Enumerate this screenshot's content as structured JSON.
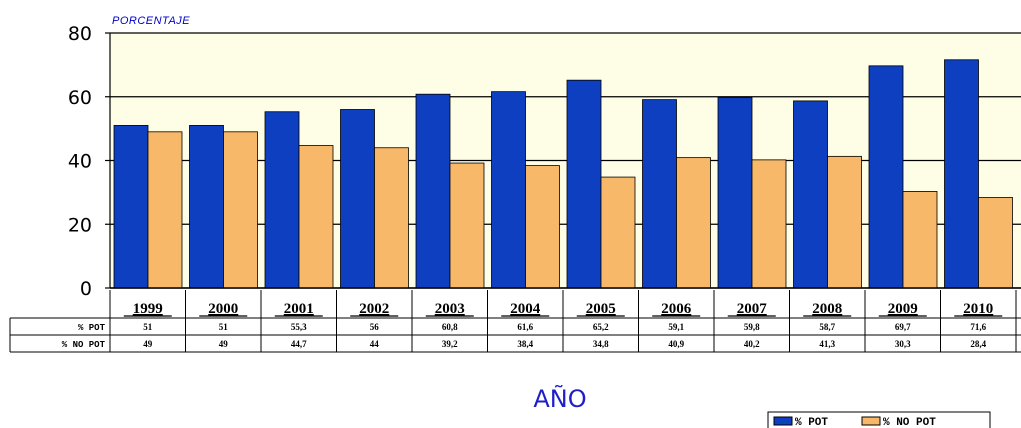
{
  "chart_data": {
    "type": "bar",
    "ylabel": "PORCENTAJE",
    "xlabel": "AÑO",
    "ylim": [
      0,
      80
    ],
    "yticks": [
      "0",
      "20",
      "40",
      "60",
      "80"
    ],
    "grid": true,
    "legend_position": "bottom-right",
    "categories": [
      "1999",
      "2000",
      "2001",
      "2002",
      "2003",
      "2004",
      "2005",
      "2006",
      "2007",
      "2008",
      "2009",
      "2010"
    ],
    "series": [
      {
        "name": "% POT",
        "color": "#0d3fc0",
        "values": [
          51,
          51,
          55.3,
          56,
          60.8,
          61.6,
          65.2,
          59.1,
          59.8,
          58.7,
          69.7,
          71.6
        ],
        "labels": [
          "51",
          "51",
          "55,3",
          "56",
          "60,8",
          "61,6",
          "65,2",
          "59,1",
          "59,8",
          "58,7",
          "69,7",
          "71,6"
        ]
      },
      {
        "name": "% NO POT",
        "color": "#f8b86a",
        "values": [
          49,
          49,
          44.7,
          44,
          39.2,
          38.4,
          34.8,
          40.9,
          40.2,
          41.3,
          30.3,
          28.4
        ],
        "labels": [
          "49",
          "49",
          "44,7",
          "44",
          "39,2",
          "38,4",
          "34,8",
          "40,9",
          "40,2",
          "41,3",
          "30,3",
          "28,4"
        ]
      }
    ],
    "table_row_labels": [
      "% POT",
      "% NO POT"
    ],
    "colors": {
      "plot_background": "#fefee6",
      "axis": "#000000"
    }
  }
}
